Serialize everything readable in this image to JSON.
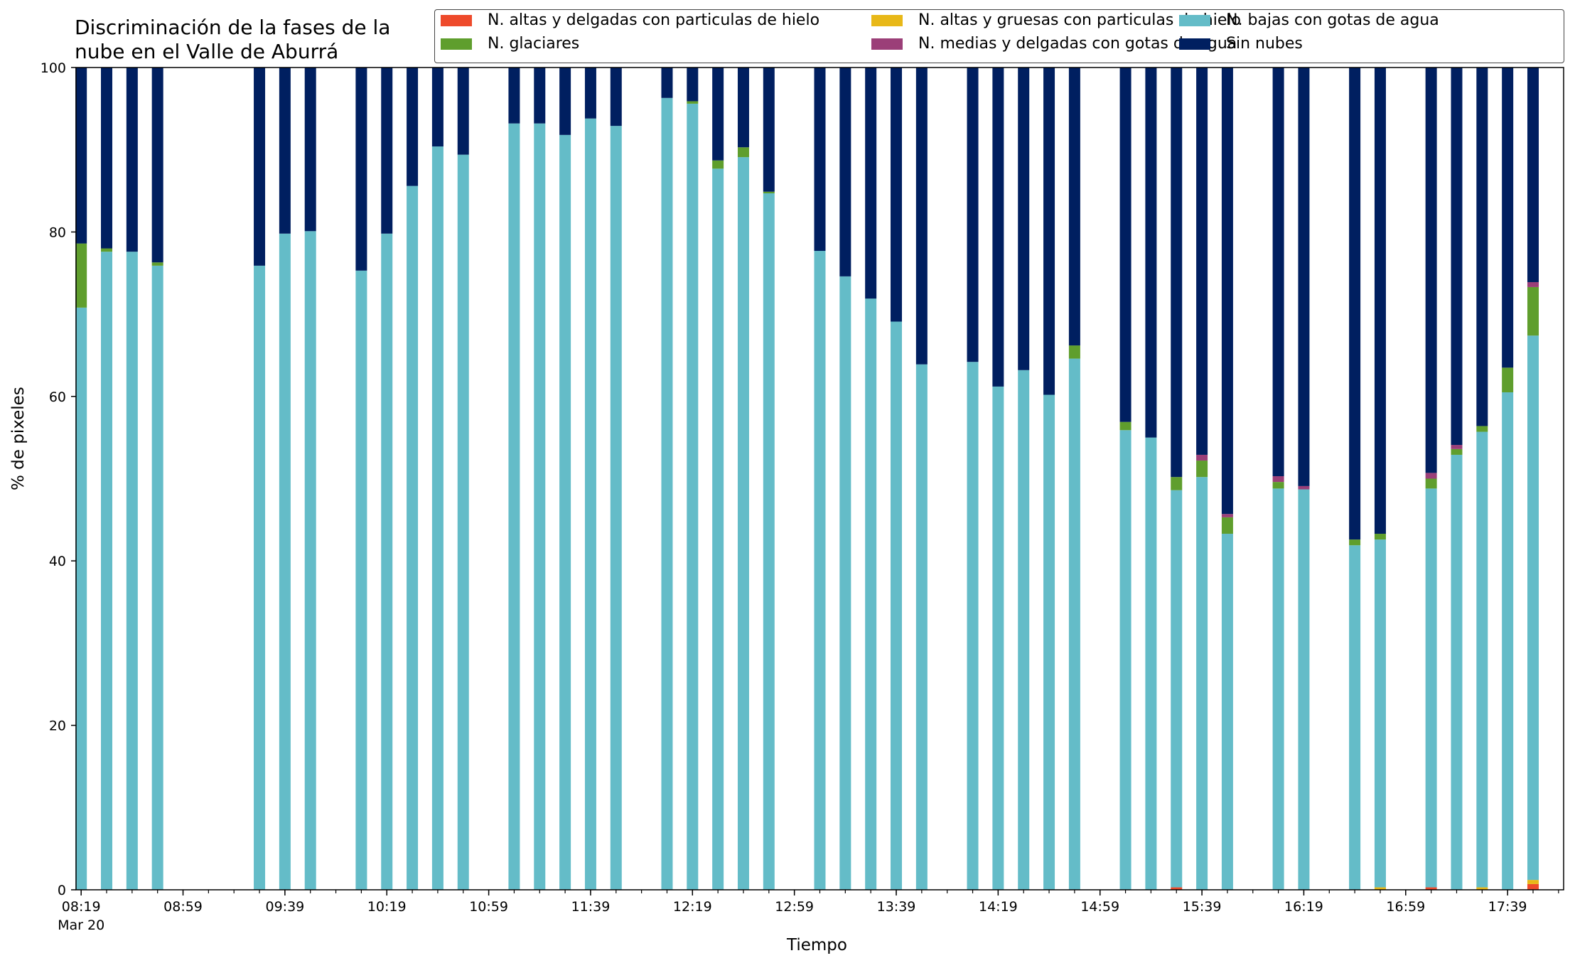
{
  "colors": {
    "altas_delgadas": "#ee4a2b",
    "altas_gruesas": "#e8b818",
    "bajas_agua": "#64bcc8",
    "glaciares": "#5f9e2d",
    "medias_delgadas": "#9b3f78",
    "sin_nubes": "#001f60"
  },
  "chart_data": {
    "type": "bar",
    "stacked": true,
    "title": [
      "Discriminación de la fases de la",
      "nube en el Valle de Aburrá"
    ],
    "xlabel": "Tiempo",
    "ylabel": "% de pixeles",
    "ylim": [
      0,
      100
    ],
    "yticks": [
      0,
      20,
      40,
      60,
      80,
      100
    ],
    "xlim": [
      "08:17",
      "18:01"
    ],
    "xtick_labels": [
      "08:19",
      "08:59",
      "09:39",
      "10:19",
      "10:59",
      "11:39",
      "12:19",
      "12:59",
      "13:39",
      "14:19",
      "14:59",
      "15:39",
      "16:19",
      "16:59",
      "17:39"
    ],
    "x_sublabel": "Mar 20",
    "legend_position": "top-right",
    "legend_columns": 3,
    "categories": [
      "08:19",
      "08:29",
      "08:39",
      "08:49",
      "09:29",
      "09:39",
      "09:49",
      "10:09",
      "10:19",
      "10:29",
      "10:39",
      "10:49",
      "11:09",
      "11:19",
      "11:29",
      "11:39",
      "11:49",
      "12:09",
      "12:19",
      "12:29",
      "12:39",
      "12:49",
      "13:09",
      "13:19",
      "13:29",
      "13:39",
      "13:49",
      "14:09",
      "14:19",
      "14:29",
      "14:39",
      "14:49",
      "15:09",
      "15:19",
      "15:29",
      "15:39",
      "15:49",
      "16:09",
      "16:19",
      "16:39",
      "16:49",
      "17:09",
      "17:19",
      "17:29",
      "17:39",
      "17:49"
    ],
    "series": [
      {
        "name": "N. altas y delgadas con particulas de hielo",
        "color_key": "altas_delgadas",
        "values": [
          0,
          0,
          0,
          0,
          0,
          0,
          0,
          0,
          0,
          0,
          0,
          0,
          0,
          0,
          0,
          0,
          0,
          0,
          0,
          0,
          0,
          0,
          0,
          0,
          0,
          0,
          0,
          0,
          0,
          0,
          0,
          0,
          0,
          0,
          0.3,
          0,
          0,
          0,
          0,
          0,
          0,
          0.3,
          0,
          0,
          0,
          0.7
        ]
      },
      {
        "name": "N. altas y gruesas con particulas de hielo",
        "color_key": "altas_gruesas",
        "values": [
          0,
          0,
          0,
          0,
          0,
          0,
          0,
          0,
          0,
          0,
          0,
          0,
          0,
          0,
          0,
          0,
          0,
          0,
          0,
          0,
          0,
          0,
          0,
          0,
          0,
          0,
          0,
          0,
          0,
          0,
          0,
          0,
          0,
          0,
          0,
          0,
          0,
          0,
          0,
          0,
          0.3,
          0,
          0,
          0.3,
          0,
          0.5
        ]
      },
      {
        "name": "N. bajas con gotas de agua",
        "color_key": "bajas_agua",
        "values": [
          70.8,
          77.6,
          77.6,
          75.9,
          75.9,
          79.8,
          80.1,
          75.3,
          79.8,
          85.6,
          90.4,
          89.4,
          93.2,
          93.2,
          91.8,
          93.8,
          92.9,
          96.3,
          95.6,
          87.7,
          89.1,
          84.7,
          77.7,
          74.6,
          71.9,
          69.1,
          63.9,
          64.2,
          61.2,
          63.2,
          60.2,
          64.6,
          55.9,
          55.0,
          48.3,
          50.2,
          43.3,
          48.8,
          48.7,
          41.9,
          42.3,
          48.5,
          52.9,
          55.4,
          60.5,
          66.2
        ]
      },
      {
        "name": "N. glaciares",
        "color_key": "glaciares",
        "values": [
          7.8,
          0.4,
          0,
          0.4,
          0,
          0,
          0,
          0,
          0,
          0,
          0,
          0,
          0,
          0,
          0,
          0,
          0,
          0,
          0.3,
          1.0,
          1.2,
          0.2,
          0,
          0,
          0,
          0,
          0,
          0,
          0,
          0,
          0,
          1.6,
          1.0,
          0,
          1.6,
          2.0,
          2.0,
          0.8,
          0,
          0.7,
          0.7,
          1.2,
          0.7,
          0.7,
          3.0,
          5.9
        ]
      },
      {
        "name": "N. medias y delgadas con gotas de agua",
        "color_key": "medias_delgadas",
        "values": [
          0,
          0,
          0,
          0,
          0,
          0,
          0,
          0,
          0,
          0,
          0,
          0,
          0,
          0,
          0,
          0,
          0,
          0,
          0,
          0,
          0,
          0,
          0,
          0,
          0,
          0,
          0,
          0,
          0,
          0,
          0,
          0,
          0,
          0,
          0,
          0.7,
          0.4,
          0.7,
          0.4,
          0,
          0,
          0.7,
          0.5,
          0,
          0,
          0.6
        ]
      },
      {
        "name": "Sin nubes",
        "color_key": "sin_nubes",
        "values": [
          21.4,
          22.0,
          22.4,
          23.7,
          24.1,
          20.2,
          19.9,
          24.7,
          20.2,
          14.4,
          9.6,
          10.6,
          6.8,
          6.8,
          8.2,
          6.2,
          7.1,
          3.7,
          4.1,
          11.3,
          9.7,
          15.1,
          22.3,
          25.4,
          28.1,
          30.9,
          36.1,
          35.8,
          38.8,
          36.8,
          39.8,
          33.8,
          43.1,
          45.0,
          49.8,
          47.1,
          54.3,
          49.7,
          50.9,
          57.4,
          56.7,
          49.3,
          45.9,
          43.6,
          36.5,
          26.1
        ]
      }
    ]
  }
}
